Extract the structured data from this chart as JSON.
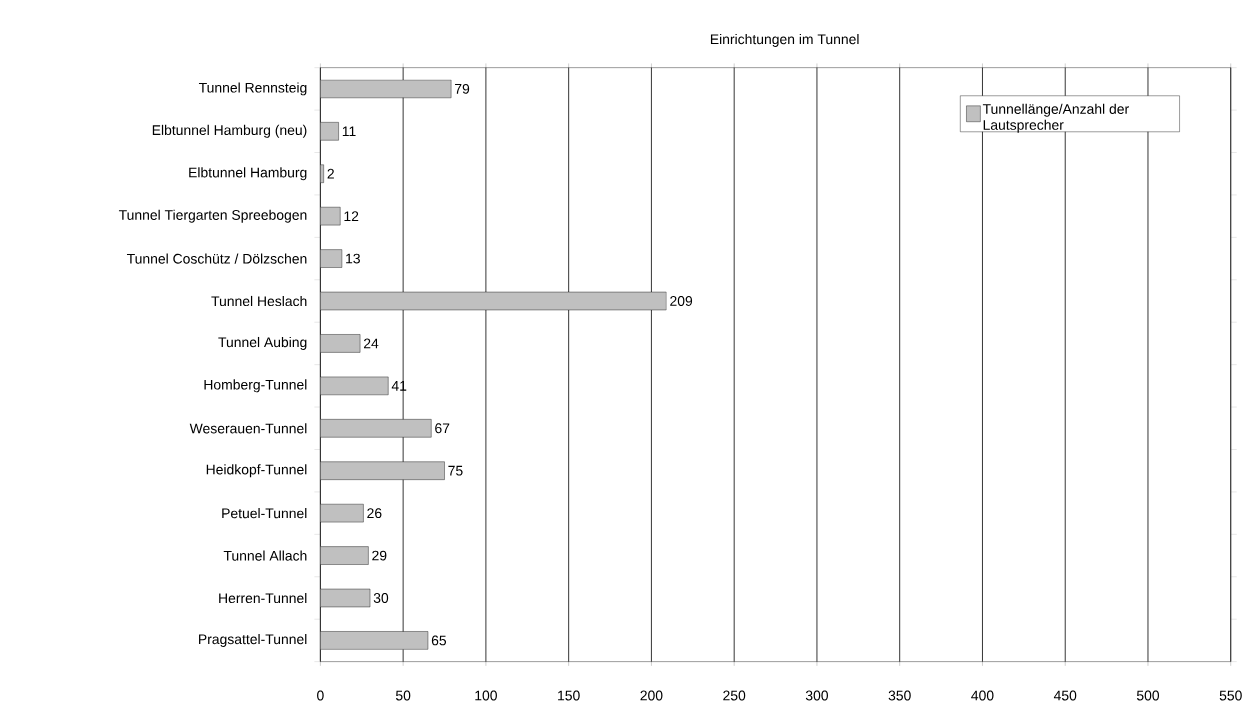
{
  "chart_data": {
    "type": "bar",
    "orientation": "horizontal",
    "title": "Einrichtungen im Tunnel",
    "categories": [
      "Tunnel Rennsteig",
      "Elbtunnel Hamburg (neu)",
      "Elbtunnel Hamburg",
      "Tunnel Tiergarten Spreebogen",
      "Tunnel Coschütz / Dölzschen",
      "Tunnel Heslach",
      "Tunnel Aubing",
      "Homberg-Tunnel",
      "Weserauen-Tunnel",
      "Heidkopf-Tunnel",
      "Petuel-Tunnel",
      "Tunnel Allach",
      "Herren-Tunnel",
      "Pragsattel-Tunnel"
    ],
    "series": [
      {
        "name": "Tunnellänge/Anzahl der Lautsprecher",
        "color": "#c0c0c0",
        "values": [
          79,
          11,
          2,
          12,
          13,
          209,
          24,
          41,
          67,
          75,
          26,
          29,
          30,
          65
        ]
      }
    ],
    "xlim": [
      0,
      550
    ],
    "xticks": [
      0,
      50,
      100,
      150,
      200,
      250,
      300,
      350,
      400,
      450,
      500,
      550
    ],
    "grid": "x",
    "legend": "top right",
    "data_labels": true
  }
}
